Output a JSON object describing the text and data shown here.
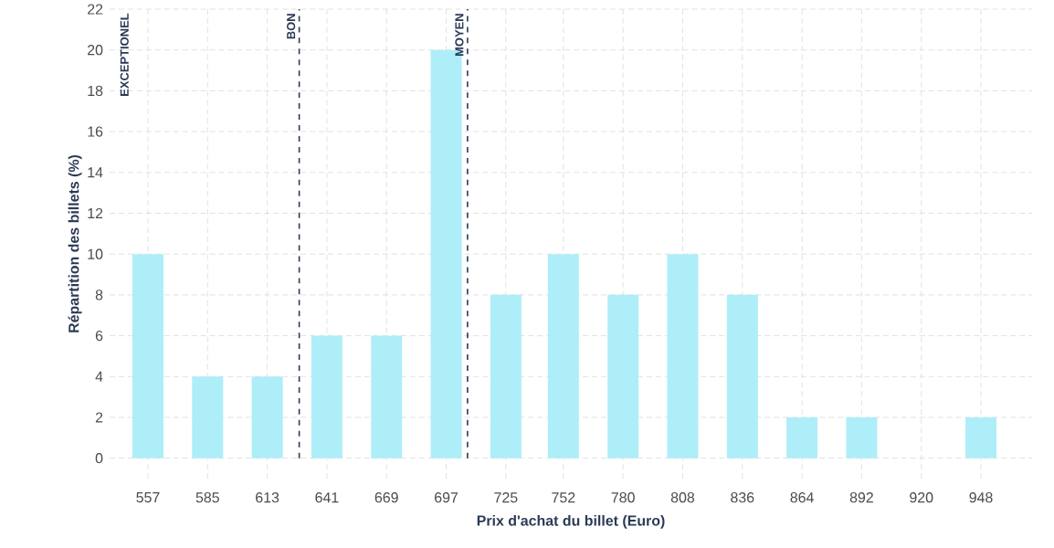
{
  "chart_data": {
    "type": "bar",
    "xlabel": "Prix d'achat du billet (Euro)",
    "ylabel": "Répartition des billets (%)",
    "x": [
      557,
      585,
      613,
      641,
      669,
      697,
      725,
      752,
      780,
      808,
      836,
      864,
      892,
      920,
      948
    ],
    "values": [
      10,
      4,
      4,
      6,
      6,
      20,
      8,
      10,
      8,
      10,
      8,
      2,
      2,
      0,
      2
    ],
    "color": "#aeeef8",
    "xlim": [
      539,
      972
    ],
    "ylim": [
      -1,
      22
    ],
    "xticks": [
      557,
      585,
      613,
      641,
      669,
      697,
      725,
      752,
      780,
      808,
      836,
      864,
      892,
      920,
      948
    ],
    "yticks": [
      0,
      2,
      4,
      6,
      8,
      10,
      12,
      14,
      16,
      18,
      20,
      22
    ],
    "grid": true,
    "ref_lines": [
      {
        "axis": "x",
        "value": 628,
        "label": "BON",
        "color": "#2b3a55",
        "line_style": "dashed"
      },
      {
        "axis": "x",
        "value": 707,
        "label": "MOYEN",
        "color": "#2b3a55",
        "line_style": "dashed"
      }
    ],
    "annotations": [
      "EXCEPTIONEL"
    ]
  }
}
